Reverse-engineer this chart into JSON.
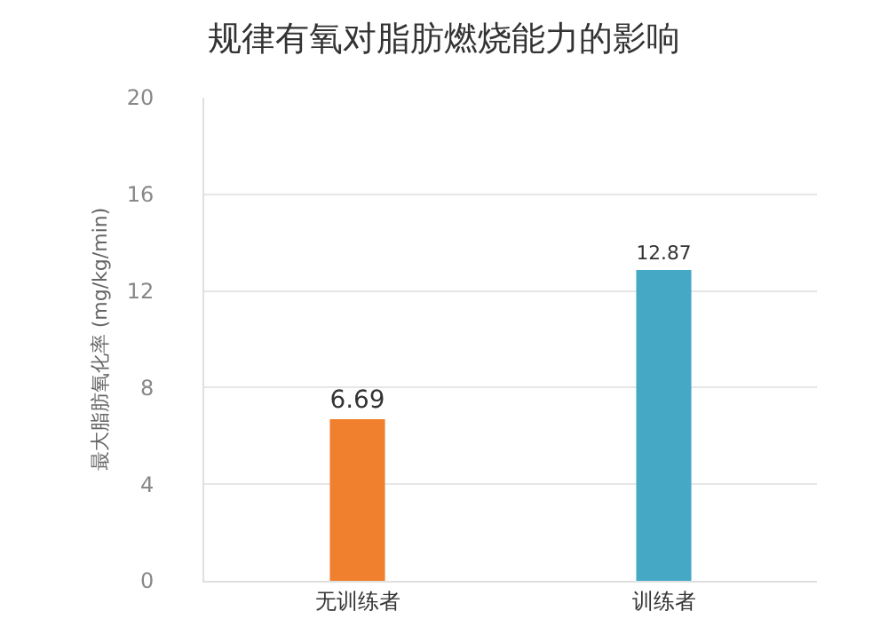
{
  "chart_data": {
    "type": "bar",
    "title": "规律有氧对脂肪燃烧能力的影响",
    "ylabel": "最大脂肪氧化率 (mg/kg/min)",
    "categories": [
      "无训练者",
      "训练者"
    ],
    "values": [
      6.69,
      12.87
    ],
    "colors": [
      "#f07f2e",
      "#45a9c6"
    ],
    "ylim": [
      0,
      20
    ],
    "yticks": [
      0,
      4,
      8,
      12,
      16,
      20
    ],
    "grid": "y",
    "data_labels": true
  }
}
